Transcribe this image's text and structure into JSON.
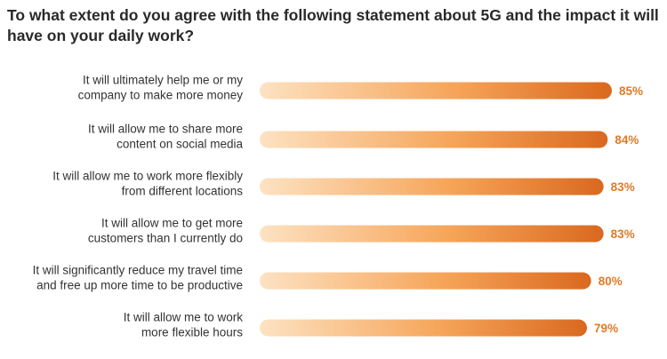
{
  "chart_data": {
    "type": "bar",
    "orientation": "horizontal",
    "title": "To what extent do you agree with the following statement about 5G and the impact it will have on your daily work?",
    "categories": [
      [
        "It will ultimately help me or my",
        "company to make more money"
      ],
      [
        "It will allow me to share more",
        "content on social media"
      ],
      [
        "It will allow me to work more flexibly",
        "from different locations"
      ],
      [
        "It will allow me to get more",
        "customers than I currently do"
      ],
      [
        "It will significantly reduce my travel time",
        "and free up more time to be productive"
      ],
      [
        "It will allow me to work",
        "more flexible hours"
      ]
    ],
    "values": [
      85,
      84,
      83,
      83,
      80,
      79
    ],
    "value_labels": [
      "85%",
      "84%",
      "83%",
      "83%",
      "80%",
      "79%"
    ],
    "xlim": [
      0,
      100
    ],
    "xlabel": "",
    "ylabel": "",
    "grid": false,
    "legend": "none",
    "colors": {
      "bar_start": "#fde2c2",
      "bar_mid": "#f6a55a",
      "bar_end": "#d9691f",
      "value_label": "#e07b27",
      "text": "#333333"
    }
  }
}
